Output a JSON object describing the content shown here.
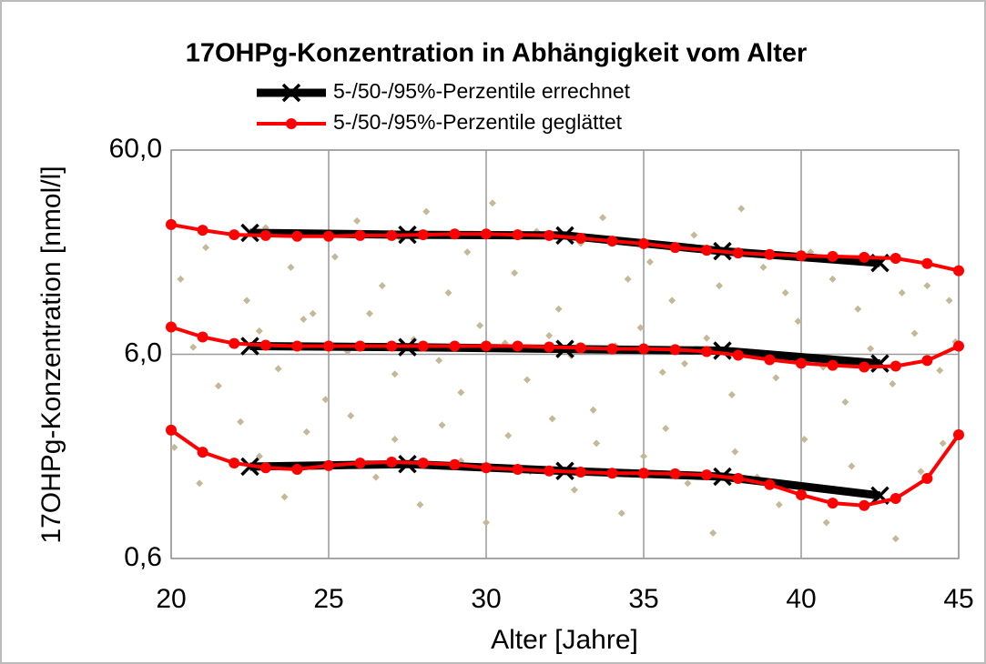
{
  "chart_data": {
    "type": "scatter",
    "title": "17OHPg-Konzentration in Abhängigkeit vom Alter",
    "xlabel": "Alter [Jahre]",
    "ylabel": "17OHPg-Konzentration [nmol/l]",
    "xlim": [
      20,
      45
    ],
    "xticks": [
      20,
      25,
      30,
      35,
      40,
      45
    ],
    "ylim": [
      0.6,
      60
    ],
    "yticks": [
      {
        "value": 0.6,
        "label": "0,6"
      },
      {
        "value": 6,
        "label": "6,0"
      },
      {
        "value": 60,
        "label": "60,0"
      }
    ],
    "ylog": true,
    "grid": true,
    "legend": "top",
    "series": [
      {
        "color": "#c4b898",
        "x": [
          20.3,
          21.1,
          22.4,
          23.0,
          23.8,
          24.5,
          25.2,
          25.9,
          26.7,
          27.3,
          28.1,
          28.8,
          29.4,
          30.2,
          30.9,
          31.6,
          32.3,
          33.0,
          33.7,
          34.5,
          35.2,
          35.9,
          36.6,
          37.4,
          38.1,
          38.8,
          39.5,
          40.3,
          41.0,
          41.8,
          42.5,
          43.2,
          44.0,
          44.7,
          20.7,
          21.5,
          22.8,
          23.4,
          24.2,
          24.9,
          25.6,
          26.3,
          27.1,
          27.7,
          28.5,
          29.2,
          29.8,
          30.6,
          31.3,
          32.0,
          32.7,
          33.4,
          34.1,
          34.9,
          35.6,
          36.3,
          37.0,
          37.8,
          38.5,
          39.2,
          39.9,
          40.7,
          41.4,
          42.2,
          42.9,
          43.6,
          44.4,
          44.9,
          20.1,
          20.9,
          22.2,
          22.8,
          23.6,
          24.3,
          25.0,
          25.7,
          26.5,
          27.1,
          27.9,
          28.6,
          29.2,
          30.0,
          30.7,
          31.4,
          32.1,
          32.8,
          33.5,
          34.3,
          35.0,
          35.7,
          36.4,
          37.2,
          37.9,
          38.6,
          39.3,
          40.1,
          40.8,
          41.6,
          42.3,
          43.0,
          43.8,
          44.5
        ],
        "values": [
          14,
          20,
          11,
          25,
          16,
          9.5,
          18,
          27,
          13,
          22,
          30,
          12,
          19,
          33,
          15,
          24,
          10,
          21,
          28,
          14,
          17,
          11,
          23,
          13,
          31,
          16,
          12,
          19,
          14,
          10,
          17,
          12,
          13,
          11,
          6.5,
          4.2,
          7.8,
          5.1,
          8.9,
          3.6,
          6.2,
          9.5,
          4.8,
          7.1,
          5.6,
          3.9,
          8.3,
          6.8,
          4.5,
          7.4,
          5.9,
          3.2,
          6.6,
          8.1,
          4.9,
          5.4,
          7.2,
          3.8,
          6.1,
          4.6,
          8.7,
          5.2,
          3.5,
          6.4,
          4.3,
          7.6,
          5.0,
          6.9,
          2.1,
          1.4,
          2.8,
          1.9,
          1.2,
          2.5,
          1.7,
          3.0,
          1.5,
          2.3,
          1.1,
          2.7,
          1.8,
          0.9,
          2.4,
          1.6,
          2.9,
          1.3,
          2.2,
          1.0,
          1.9,
          2.6,
          1.4,
          0.8,
          2.0,
          1.5,
          1.1,
          2.3,
          0.9,
          1.7,
          1.2,
          0.75,
          1.6,
          2.2
        ]
      },
      {
        "name": "5-/50-/95%-Perzentile errechnet",
        "color": "#000000",
        "marker": "x",
        "x": [
          22.5,
          27.5,
          32.5,
          37.5,
          42.5
        ],
        "values": [
          [
            23.6,
            23.1,
            22.9,
            19.2,
            16.8
          ],
          [
            6.58,
            6.5,
            6.37,
            6.25,
            5.41
          ],
          [
            1.69,
            1.74,
            1.61,
            1.51,
            1.22
          ]
        ]
      },
      {
        "name": "5-/50-/95%-Perzentile geglättet",
        "color": "#ff0000",
        "marker": "circle",
        "x": [
          20,
          21,
          22,
          23,
          24,
          25,
          26,
          27,
          28,
          29,
          30,
          31,
          32,
          33,
          34,
          35,
          36,
          37,
          38,
          39,
          40,
          41,
          42,
          43,
          44,
          45
        ],
        "values": [
          [
            25.9,
            24.3,
            23.1,
            22.9,
            22.7,
            22.7,
            22.9,
            22.9,
            23.1,
            23.3,
            23.3,
            23.1,
            22.9,
            22.2,
            21.5,
            20.9,
            20.0,
            19.4,
            18.8,
            18.5,
            18.2,
            18.1,
            17.9,
            17.7,
            16.7,
            15.4
          ],
          [
            8.16,
            7.29,
            6.78,
            6.65,
            6.58,
            6.58,
            6.58,
            6.58,
            6.58,
            6.58,
            6.58,
            6.58,
            6.51,
            6.45,
            6.38,
            6.38,
            6.32,
            6.19,
            5.94,
            5.64,
            5.42,
            5.3,
            5.2,
            5.25,
            5.59,
            6.58
          ],
          [
            2.55,
            1.99,
            1.76,
            1.67,
            1.64,
            1.71,
            1.76,
            1.78,
            1.76,
            1.73,
            1.67,
            1.64,
            1.61,
            1.59,
            1.57,
            1.57,
            1.56,
            1.54,
            1.48,
            1.38,
            1.23,
            1.12,
            1.09,
            1.18,
            1.48,
            2.42
          ]
        ]
      }
    ]
  }
}
